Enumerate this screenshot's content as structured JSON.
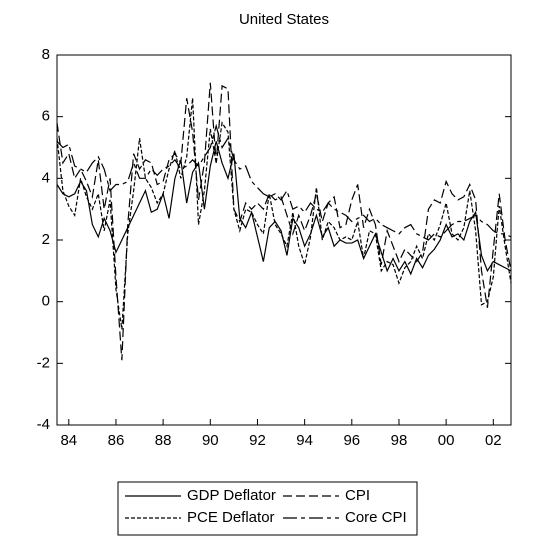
{
  "chart_data": {
    "type": "line",
    "title": "United States",
    "x": [
      1983.5,
      1983.75,
      1984,
      1984.25,
      1984.5,
      1984.75,
      1985,
      1985.25,
      1985.5,
      1985.75,
      1986,
      1986.25,
      1986.5,
      1986.75,
      1987,
      1987.25,
      1987.5,
      1987.75,
      1988,
      1988.25,
      1988.5,
      1988.75,
      1989,
      1989.25,
      1989.5,
      1989.75,
      1990,
      1990.25,
      1990.5,
      1990.75,
      1991,
      1991.25,
      1991.5,
      1991.75,
      1992,
      1992.25,
      1992.5,
      1992.75,
      1993,
      1993.25,
      1993.5,
      1993.75,
      1994,
      1994.25,
      1994.5,
      1994.75,
      1995,
      1995.25,
      1995.5,
      1995.75,
      1996,
      1996.25,
      1996.5,
      1996.75,
      1997,
      1997.25,
      1997.5,
      1997.75,
      1998,
      1998.25,
      1998.5,
      1998.75,
      1999,
      1999.25,
      1999.5,
      1999.75,
      2000,
      2000.25,
      2000.5,
      2000.75,
      2001,
      2001.25,
      2001.5,
      2001.75,
      2002,
      2002.25,
      2002.5,
      2002.75
    ],
    "series": [
      {
        "name": "GDP Deflator",
        "color": "#000000",
        "dash": "none",
        "values": [
          3.8,
          3.5,
          3.4,
          3.5,
          3.9,
          3.6,
          2.5,
          2.1,
          2.7,
          2.3,
          1.6,
          2.0,
          2.4,
          2.8,
          3.2,
          3.6,
          2.9,
          3.0,
          3.5,
          2.7,
          4.0,
          4.6,
          3.2,
          4.2,
          4.5,
          3.0,
          4.4,
          5.2,
          4.5,
          4.0,
          4.8,
          2.7,
          2.4,
          2.9,
          2.1,
          1.3,
          2.4,
          2.6,
          2.3,
          1.5,
          2.7,
          2.4,
          1.8,
          2.2,
          2.8,
          2.1,
          2.4,
          1.8,
          2.0,
          1.9,
          1.9,
          2.0,
          1.4,
          1.8,
          2.2,
          1.6,
          1.0,
          1.4,
          1.0,
          1.3,
          0.9,
          1.4,
          1.1,
          1.5,
          1.7,
          2.0,
          2.5,
          2.1,
          2.2,
          2.0,
          2.6,
          2.9,
          1.5,
          1.0,
          1.3,
          1.2,
          1.1,
          1.0
        ]
      },
      {
        "name": "CPI",
        "color": "#000000",
        "dash": "9,4",
        "values": [
          5.8,
          4.5,
          4.8,
          4.0,
          4.3,
          3.9,
          3.4,
          4.6,
          3.0,
          4.0,
          0.8,
          -1.9,
          2.5,
          4.8,
          4.3,
          4.6,
          4.5,
          3.8,
          3.9,
          4.6,
          4.8,
          4.5,
          6.6,
          5.5,
          3.3,
          4.5,
          7.1,
          4.5,
          7.0,
          6.9,
          3.0,
          2.6,
          3.2,
          3.0,
          3.2,
          3.0,
          3.5,
          3.3,
          3.4,
          2.8,
          2.2,
          2.8,
          2.3,
          2.8,
          3.5,
          2.6,
          3.2,
          3.4,
          2.4,
          2.5,
          3.3,
          3.8,
          2.4,
          3.0,
          2.5,
          1.2,
          2.3,
          1.8,
          1.3,
          1.7,
          1.5,
          1.3,
          1.6,
          3.0,
          3.3,
          3.2,
          3.9,
          3.5,
          3.3,
          3.4,
          3.8,
          3.3,
          1.0,
          -0.2,
          1.7,
          3.5,
          2.0,
          1.0
        ]
      },
      {
        "name": "PCE Deflator",
        "color": "#000000",
        "dash": "4,2",
        "values": [
          5.3,
          3.6,
          3.1,
          2.8,
          4.0,
          3.4,
          3.0,
          3.5,
          2.3,
          3.3,
          0.4,
          -0.9,
          2.2,
          3.6,
          5.3,
          4.0,
          3.7,
          3.2,
          3.5,
          4.3,
          4.9,
          4.0,
          4.7,
          6.6,
          2.5,
          3.6,
          5.6,
          4.5,
          5.8,
          5.5,
          3.0,
          2.3,
          3.0,
          2.9,
          2.5,
          2.2,
          3.5,
          2.5,
          2.2,
          1.8,
          2.9,
          1.8,
          1.2,
          2.1,
          3.7,
          2.0,
          2.6,
          2.4,
          2.0,
          2.1,
          2.0,
          2.6,
          1.4,
          2.3,
          2.2,
          1.0,
          1.3,
          1.2,
          0.6,
          1.1,
          1.3,
          1.8,
          1.4,
          2.2,
          2.0,
          2.5,
          3.2,
          2.2,
          2.0,
          2.4,
          3.6,
          2.3,
          -0.1,
          0.0,
          0.8,
          3.1,
          1.8,
          0.6
        ]
      },
      {
        "name": "Core CPI",
        "color": "#000000",
        "dash": "14,4,4,4",
        "values": [
          5.2,
          5.0,
          5.1,
          4.4,
          4.3,
          4.2,
          4.5,
          4.7,
          4.3,
          3.6,
          3.8,
          3.8,
          3.9,
          4.5,
          4.0,
          4.0,
          4.3,
          4.1,
          4.3,
          4.4,
          4.6,
          4.3,
          4.4,
          4.6,
          4.4,
          4.7,
          5.0,
          5.7,
          5.0,
          5.3,
          4.6,
          4.3,
          4.4,
          3.9,
          3.7,
          3.5,
          3.4,
          3.5,
          3.3,
          3.6,
          3.0,
          3.1,
          2.9,
          3.2,
          3.0,
          2.9,
          3.2,
          3.0,
          2.9,
          2.8,
          2.6,
          2.7,
          2.8,
          2.6,
          2.7,
          2.5,
          2.4,
          2.3,
          2.2,
          2.4,
          2.5,
          2.2,
          2.1,
          2.0,
          2.2,
          2.1,
          2.3,
          2.5,
          2.6,
          2.6,
          2.7,
          2.8,
          2.6,
          2.5,
          2.3,
          2.2,
          2.2,
          2.1
        ]
      }
    ],
    "xlim": [
      1983.5,
      2002.75
    ],
    "xticks": [
      {
        "value": 1984,
        "label": "84"
      },
      {
        "value": 1986,
        "label": "86"
      },
      {
        "value": 1988,
        "label": "88"
      },
      {
        "value": 1990,
        "label": "90"
      },
      {
        "value": 1992,
        "label": "92"
      },
      {
        "value": 1994,
        "label": "94"
      },
      {
        "value": 1996,
        "label": "96"
      },
      {
        "value": 1998,
        "label": "98"
      },
      {
        "value": 2000,
        "label": "00"
      },
      {
        "value": 2002,
        "label": "02"
      }
    ],
    "ylim": [
      -4,
      8
    ],
    "yticks": [
      -4,
      -2,
      0,
      2,
      4,
      6,
      8
    ],
    "grid": false
  }
}
